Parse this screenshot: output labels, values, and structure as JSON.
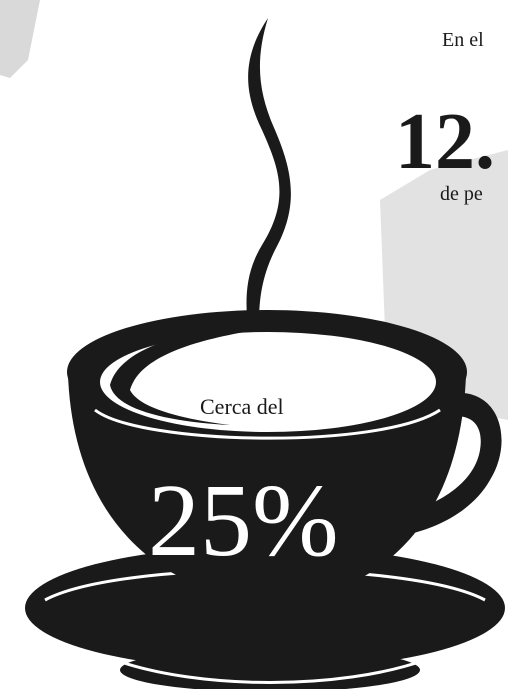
{
  "intro": "En el",
  "big_number": "12.",
  "unit_text": "de pe",
  "cup_caption": "Cerca del",
  "cup_value": "25%"
}
